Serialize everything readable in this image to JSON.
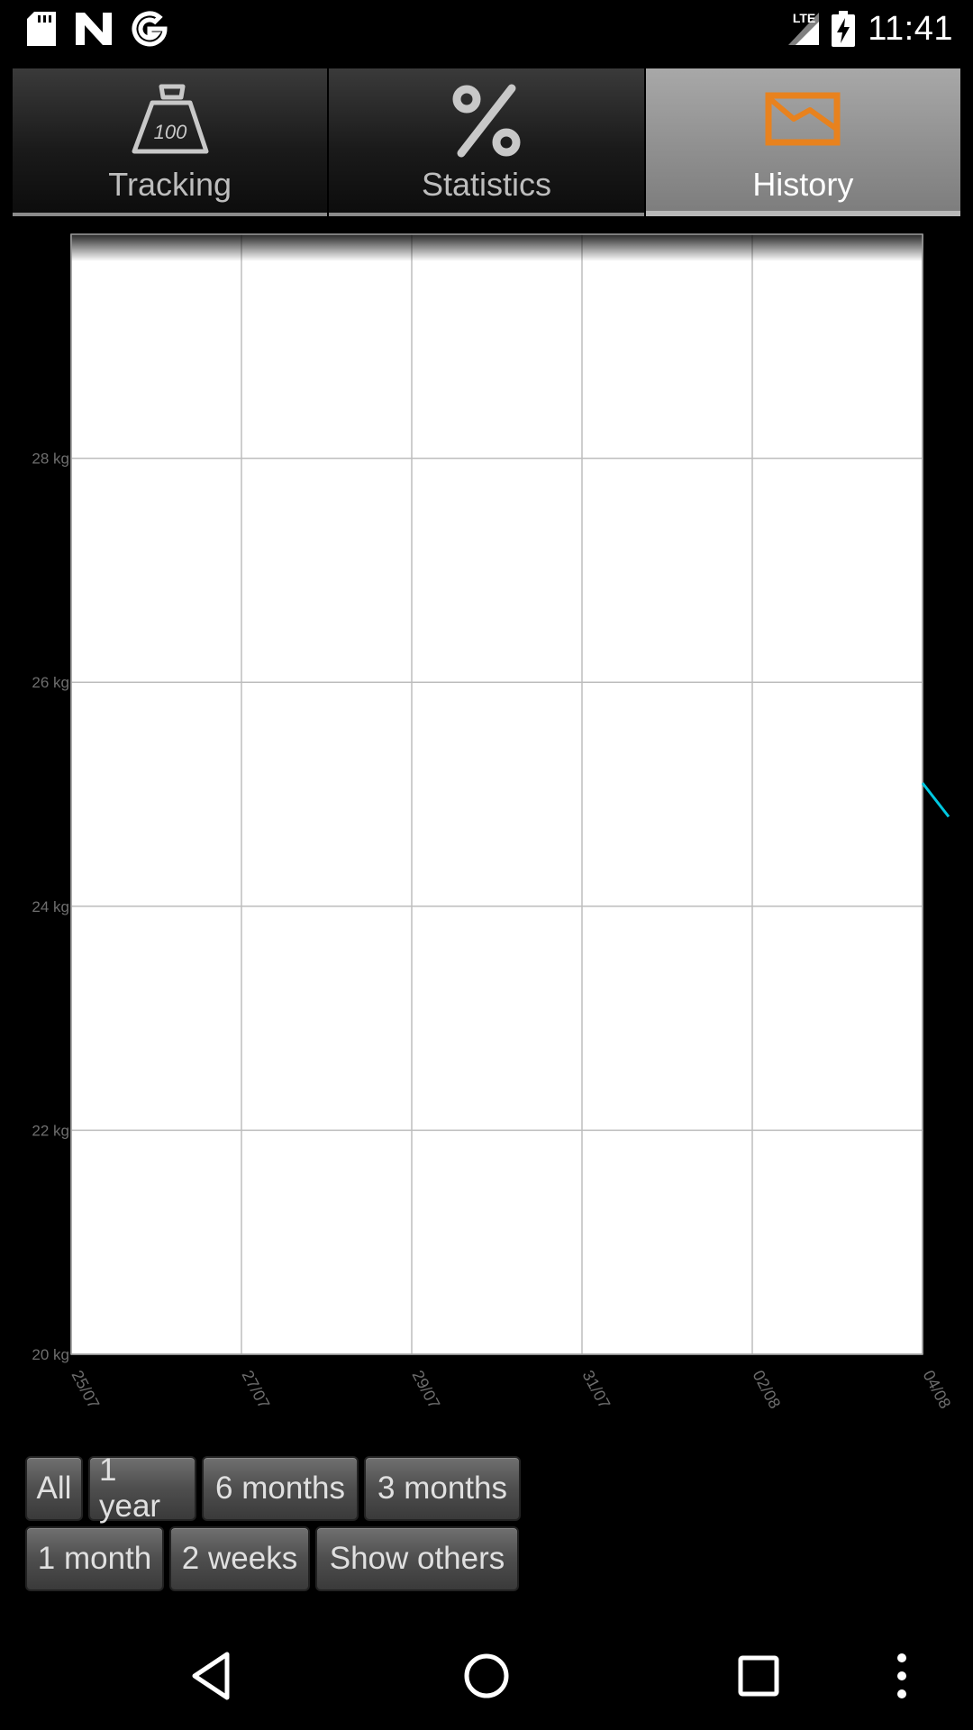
{
  "status_bar": {
    "time": "11:41",
    "network": "LTE",
    "left_icons": [
      "sd-card-icon",
      "n-logo-icon",
      "google-g-icon"
    ],
    "right_icons": [
      "signal-icon",
      "battery-charging-icon"
    ]
  },
  "tabs": [
    {
      "label": "Tracking",
      "icon": "scale-weight-icon",
      "active": false
    },
    {
      "label": "Statistics",
      "icon": "percent-icon",
      "active": false
    },
    {
      "label": "History",
      "icon": "chart-envelope-icon",
      "active": true
    }
  ],
  "chart_data": {
    "type": "line",
    "ylabel_unit": "kg",
    "y_ticks": [
      "28 kg",
      "26 kg",
      "24 kg",
      "22 kg",
      "20 kg"
    ],
    "x_ticks": [
      "25/07",
      "27/07",
      "29/07",
      "31/07",
      "02/08",
      "04/08"
    ],
    "ylim": [
      20,
      30
    ],
    "grid": true,
    "series": [
      {
        "color": "#00c8e0",
        "points": [
          {
            "x": "04/08",
            "y": 25.1
          },
          {
            "x": "04/08+",
            "y": 24.8
          }
        ]
      }
    ]
  },
  "range_buttons": {
    "row1": [
      "All",
      "1 year",
      "6 months",
      "3 months"
    ],
    "row2": [
      "1 month",
      "2 weeks",
      "Show others"
    ]
  },
  "nav_bar": {
    "icons": [
      "back-icon",
      "home-icon",
      "recents-icon",
      "overflow-menu-icon"
    ]
  }
}
